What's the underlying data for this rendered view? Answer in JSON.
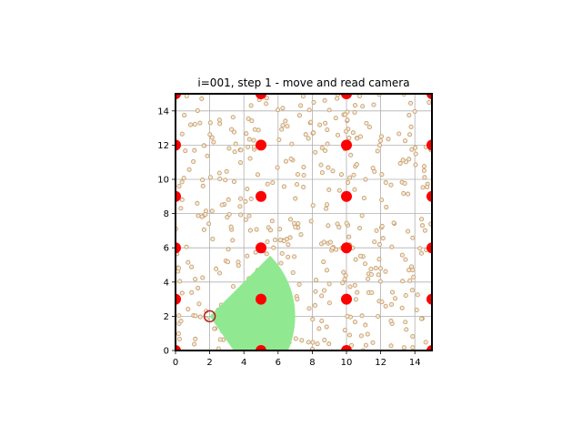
{
  "chart_data": {
    "type": "scatter",
    "title": "i=001, step 1 - move and read camera",
    "xlabel": "",
    "ylabel": "",
    "xlim": [
      0,
      15
    ],
    "ylim": [
      0,
      15
    ],
    "xticks": [
      0,
      2,
      4,
      6,
      8,
      10,
      12,
      14
    ],
    "yticks": [
      0,
      2,
      4,
      6,
      8,
      10,
      12,
      14
    ],
    "grid": true,
    "landmarks": {
      "color": "#ff0000",
      "points": [
        [
          0,
          0
        ],
        [
          5,
          0
        ],
        [
          10,
          0
        ],
        [
          15,
          0
        ],
        [
          0,
          3
        ],
        [
          5,
          3
        ],
        [
          10,
          3
        ],
        [
          15,
          3
        ],
        [
          0,
          6
        ],
        [
          5,
          6
        ],
        [
          10,
          6
        ],
        [
          15,
          6
        ],
        [
          0,
          9
        ],
        [
          5,
          9
        ],
        [
          10,
          9
        ],
        [
          15,
          9
        ],
        [
          0,
          12
        ],
        [
          5,
          12
        ],
        [
          10,
          12
        ],
        [
          15,
          12
        ],
        [
          0,
          15
        ],
        [
          5,
          15
        ],
        [
          10,
          15
        ],
        [
          15,
          15
        ]
      ]
    },
    "robot": {
      "x": 2,
      "y": 2,
      "color": "#b22222"
    },
    "camera_view": {
      "color": "#90e990",
      "origin": [
        2,
        2
      ],
      "range": 5,
      "heading_deg": -5,
      "half_angle_deg": 50
    },
    "particles": {
      "count": 450,
      "color": "#d2b48c",
      "edge_color": "#c8a070",
      "x_range": [
        0,
        15
      ],
      "y_range": [
        0,
        15
      ]
    }
  }
}
